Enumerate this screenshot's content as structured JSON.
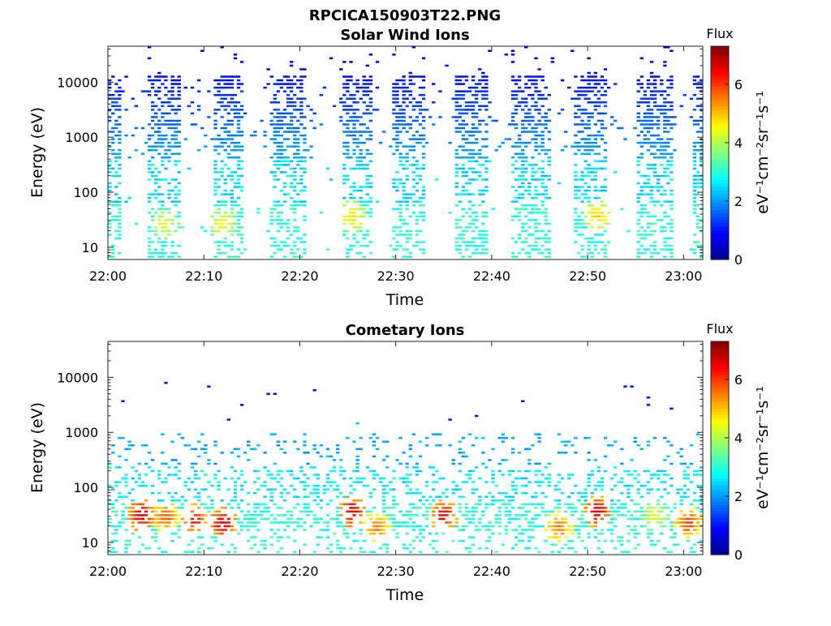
{
  "figure_title": "RPCICA150903T22.PNG",
  "colormap": [
    "#00008f",
    "#0000ff",
    "#0080ff",
    "#00ffff",
    "#80ff80",
    "#ffff00",
    "#ff8000",
    "#ff0000",
    "#800000"
  ],
  "chart_data": [
    {
      "type": "heatmap",
      "title": "Solar Wind Ions",
      "xlabel": "Time",
      "ylabel": "Energy (eV)",
      "x_ticks": [
        "22:00",
        "22:10",
        "22:20",
        "22:30",
        "22:40",
        "22:50",
        "23:00"
      ],
      "y_ticks": [
        "10",
        "100",
        "1000",
        "10000"
      ],
      "y_scale": "log",
      "ylim": [
        6,
        45000
      ],
      "xlim_minutes": [
        0,
        62
      ],
      "colorbar": {
        "title": "Flux",
        "label": "eV⁻¹cm⁻²sr⁻¹s⁻¹",
        "ticks": [
          "0",
          "2",
          "4",
          "6"
        ],
        "range": [
          0,
          7.3
        ]
      },
      "scan_bands_minutes": [
        [
          0,
          1.5
        ],
        [
          4.3,
          7.5
        ],
        [
          11,
          14
        ],
        [
          17,
          20.5
        ],
        [
          24.5,
          27.5
        ],
        [
          29.5,
          33
        ],
        [
          36,
          39.5
        ],
        [
          42,
          46
        ],
        [
          48.5,
          52
        ],
        [
          55,
          59
        ],
        [
          61,
          62
        ]
      ],
      "peaks": [
        {
          "time_min": 6,
          "energy_ev": 25,
          "flux": 4.6
        },
        {
          "time_min": 12,
          "energy_ev": 25,
          "flux": 4.8
        },
        {
          "time_min": 25.5,
          "energy_ev": 35,
          "flux": 5.0
        },
        {
          "time_min": 51,
          "energy_ev": 35,
          "flux": 5.2
        }
      ]
    },
    {
      "type": "heatmap",
      "title": "Cometary Ions",
      "xlabel": "Time",
      "ylabel": "Energy (eV)",
      "x_ticks": [
        "22:00",
        "22:10",
        "22:20",
        "22:30",
        "22:40",
        "22:50",
        "23:00"
      ],
      "y_ticks": [
        "10",
        "100",
        "1000",
        "10000"
      ],
      "y_scale": "log",
      "ylim": [
        6,
        45000
      ],
      "xlim_minutes": [
        0,
        62
      ],
      "colorbar": {
        "title": "Flux",
        "label": "eV⁻¹cm⁻²sr⁻¹s⁻¹",
        "ticks": [
          "0",
          "2",
          "4",
          "6"
        ],
        "range": [
          0,
          7.3
        ]
      },
      "peaks": [
        {
          "time_min": 3.5,
          "energy_ev": 30,
          "flux": 6.8
        },
        {
          "time_min": 6,
          "energy_ev": 28,
          "flux": 6.0
        },
        {
          "time_min": 9,
          "energy_ev": 25,
          "flux": 6.5
        },
        {
          "time_min": 12,
          "energy_ev": 22,
          "flux": 6.8
        },
        {
          "time_min": 25.5,
          "energy_ev": 35,
          "flux": 6.8
        },
        {
          "time_min": 28,
          "energy_ev": 18,
          "flux": 5.8
        },
        {
          "time_min": 35,
          "energy_ev": 30,
          "flux": 6.6
        },
        {
          "time_min": 47,
          "energy_ev": 18,
          "flux": 5.8
        },
        {
          "time_min": 51,
          "energy_ev": 35,
          "flux": 6.8
        },
        {
          "time_min": 57,
          "energy_ev": 30,
          "flux": 4.6
        },
        {
          "time_min": 60.5,
          "energy_ev": 22,
          "flux": 6.2
        }
      ]
    }
  ]
}
